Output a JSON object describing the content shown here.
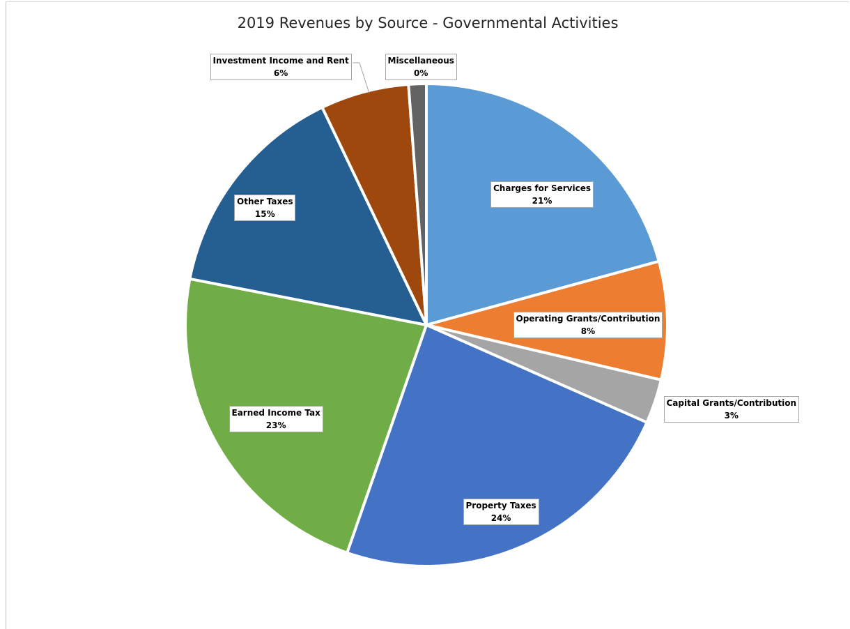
{
  "chart_data": {
    "type": "pie",
    "title": "2019 Revenues by Source - Governmental Activities",
    "slices": [
      {
        "name": "Charges for Services",
        "value": 21,
        "label": "21%",
        "color": "#5b9bd5"
      },
      {
        "name": "Operating Grants/Contribution",
        "value": 8,
        "label": "8%",
        "color": "#ed7d31"
      },
      {
        "name": "Capital Grants/Contribution",
        "value": 3,
        "label": "3%",
        "color": "#a5a5a5"
      },
      {
        "name": "Property Taxes",
        "value": 24,
        "label": "24%",
        "color": "#4472c4"
      },
      {
        "name": "Earned Income Tax",
        "value": 23,
        "label": "23%",
        "color": "#70ad47"
      },
      {
        "name": "Other Taxes",
        "value": 15,
        "label": "15%",
        "color": "#255e91"
      },
      {
        "name": "Investment Income and Rent",
        "value": 6,
        "label": "6%",
        "color": "#9e480e"
      },
      {
        "name": "Miscellaneous",
        "value": 0,
        "label": "0%",
        "color": "#636363"
      }
    ]
  }
}
